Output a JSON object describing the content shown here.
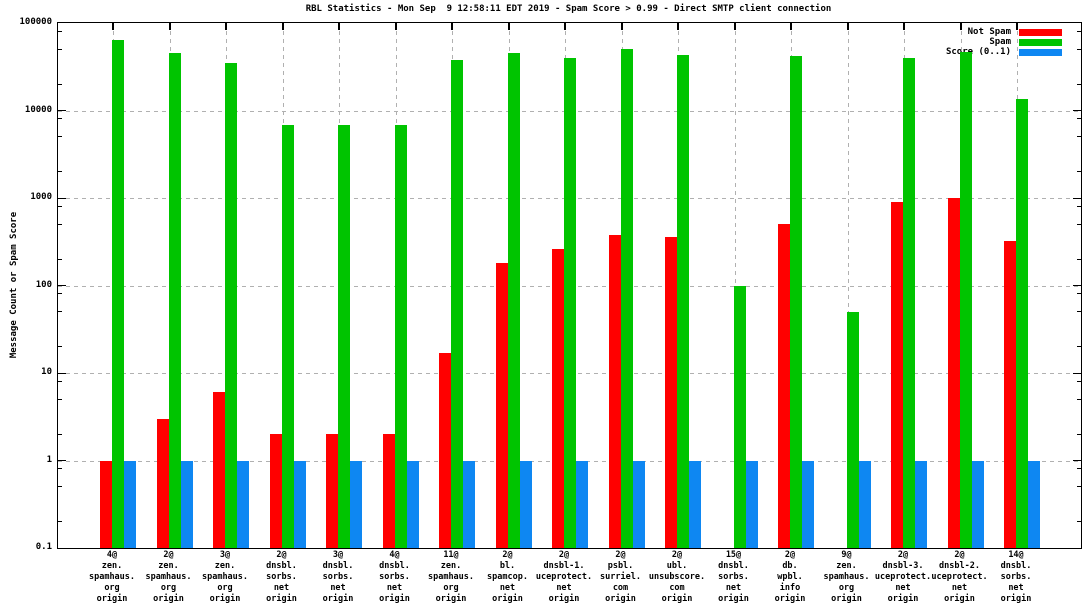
{
  "title": "RBL Statistics - Mon Sep  9 12:58:11 EDT 2019 - Spam Score > 0.99 - Direct SMTP client connection",
  "ylabel": "Message Count or Spam Score",
  "colors": {
    "not_spam": "#ff0000",
    "spam": "#00c400",
    "score": "#0e87f2",
    "grid": "#b0b0b0",
    "axis": "#000000"
  },
  "chart_data": {
    "type": "bar",
    "title": "RBL Statistics - Mon Sep  9 12:58:11 EDT 2019 - Spam Score > 0.99 - Direct SMTP client connection",
    "ylabel": "Message Count or Spam Score",
    "yscale": "log",
    "ylim": [
      0.1,
      100000
    ],
    "grid": true,
    "legend_position": "top-right-inside",
    "ytick_labels": [
      "100000",
      "10000",
      "1000",
      "100",
      "10",
      "1",
      "0.1"
    ],
    "categories": [
      "4@\nzen.\nspamhaus.\norg\norigin",
      "2@\nzen.\nspamhaus.\norg\norigin",
      "3@\nzen.\nspamhaus.\norg\norigin",
      "2@\ndnsbl.\nsorbs.\nnet\norigin",
      "3@\ndnsbl.\nsorbs.\nnet\norigin",
      "4@\ndnsbl.\nsorbs.\nnet\norigin",
      "11@\nzen.\nspamhaus.\norg\norigin",
      "2@\nbl.\nspamcop.\nnet\norigin",
      "2@\ndnsbl-1.\nuceprotect.\nnet\norigin",
      "2@\npsbl.\nsurriel.\ncom\norigin",
      "2@\nubl.\nunsubscore.\ncom\norigin",
      "15@\ndnsbl.\nsorbs.\nnet\norigin",
      "2@\ndb.\nwpbl.\ninfo\norigin",
      "9@\nzen.\nspamhaus.\norg\norigin",
      "2@\ndnsbl-3.\nuceprotect.\nnet\norigin",
      "2@\ndnsbl-2.\nuceprotect.\nnet\norigin",
      "14@\ndnsbl.\nsorbs.\nnet\norigin"
    ],
    "series": [
      {
        "name": "Not Spam",
        "color": "#ff0000",
        "values": [
          1,
          3,
          6,
          2,
          2,
          2,
          17,
          180,
          260,
          380,
          360,
          null,
          500,
          null,
          900,
          1000,
          320
        ]
      },
      {
        "name": "Spam",
        "color": "#00c400",
        "values": [
          64000,
          46000,
          35000,
          6800,
          6800,
          6800,
          38000,
          45000,
          40000,
          51000,
          43000,
          100,
          42000,
          50,
          40000,
          47000,
          13500
        ]
      },
      {
        "name": "Score (0..1)",
        "color": "#0e87f2",
        "values": [
          1,
          1,
          1,
          1,
          1,
          1,
          1,
          1,
          1,
          1,
          1,
          1,
          1,
          1,
          1,
          1,
          1
        ]
      }
    ]
  }
}
